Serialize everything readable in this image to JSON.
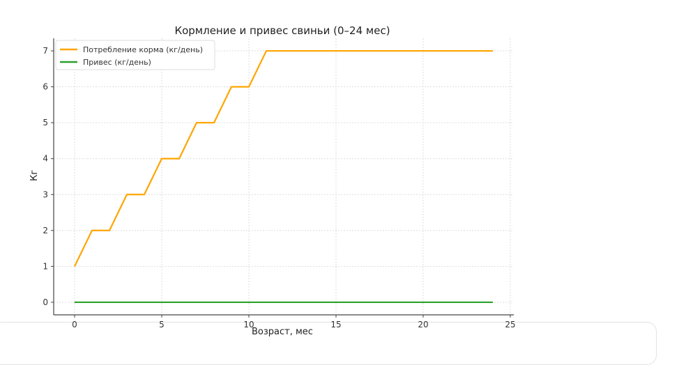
{
  "chart_data": {
    "type": "line",
    "title": "Кормление и привес свиньи (0–24 мес)",
    "xlabel": "Возраст, мес",
    "ylabel": "Кг",
    "xlim": [
      -1.2,
      25.2
    ],
    "ylim": [
      -0.35,
      7.35
    ],
    "xticks": [
      0,
      5,
      10,
      15,
      20,
      25
    ],
    "yticks": [
      0,
      1,
      2,
      3,
      4,
      5,
      6,
      7
    ],
    "grid": true,
    "legend": "top-left",
    "x": [
      0,
      1,
      2,
      3,
      4,
      5,
      6,
      7,
      8,
      9,
      10,
      11,
      12,
      13,
      14,
      15,
      16,
      17,
      18,
      19,
      20,
      21,
      22,
      23,
      24
    ],
    "series": [
      {
        "name": "Потребление корма (кг/день)",
        "color": "#FFA500",
        "values": [
          1,
          2,
          2,
          3,
          3,
          4,
          4,
          5,
          5,
          6,
          6,
          7,
          7,
          7,
          7,
          7,
          7,
          7,
          7,
          7,
          7,
          7,
          7,
          7,
          7
        ]
      },
      {
        "name": "Привес (кг/день)",
        "color": "#2CA02C",
        "values": [
          0,
          0,
          0,
          0,
          0,
          0,
          0,
          0,
          0,
          0,
          0,
          0,
          0,
          0,
          0,
          0,
          0,
          0,
          0,
          0,
          0,
          0,
          0,
          0,
          0
        ]
      }
    ]
  }
}
